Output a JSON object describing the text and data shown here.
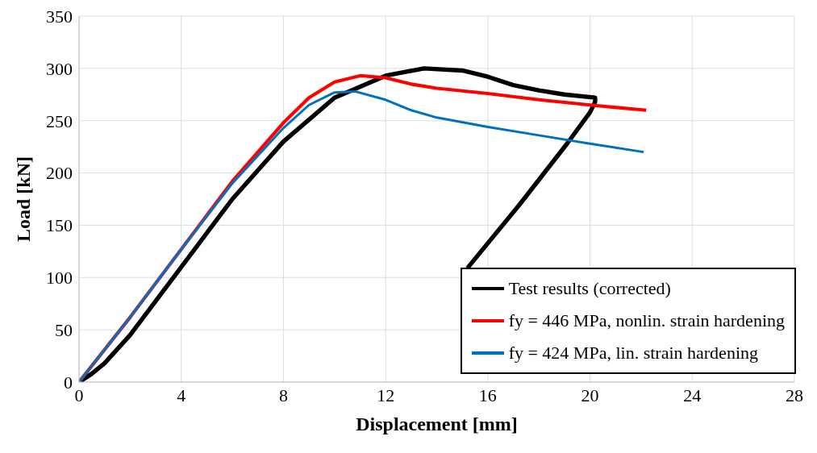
{
  "chart_data": {
    "type": "line",
    "xlabel": "Displacement [mm]",
    "ylabel": "Load [kN]",
    "xlim": [
      0,
      28
    ],
    "xticks": [
      0,
      4,
      8,
      12,
      16,
      20,
      24,
      28
    ],
    "ylim": [
      0,
      350
    ],
    "yticks": [
      0,
      50,
      100,
      150,
      200,
      250,
      300,
      350
    ],
    "grid": true,
    "legend": "bottom right",
    "marker": "none",
    "line_style": "solid",
    "series": [
      {
        "name": "Test results (corrected)",
        "color": "#000000",
        "x": [
          0,
          0.5,
          1,
          2,
          4,
          6,
          8,
          10,
          12,
          13.5,
          15,
          16,
          17,
          18,
          19,
          20.2,
          20.2,
          20,
          19.1,
          17.25,
          15.2
        ],
        "values": [
          0,
          8,
          18,
          45,
          110,
          175,
          230,
          272,
          293,
          300,
          298,
          292,
          284,
          279,
          275,
          272,
          268,
          258,
          228,
          170,
          109
        ]
      },
      {
        "name": "fy = 446 MPa, nonlin. strain hardening",
        "color": "#ff0000",
        "x": [
          0,
          2,
          4,
          6,
          8,
          9,
          10,
          11,
          12,
          13,
          14,
          16,
          18,
          20,
          22.2
        ],
        "values": [
          0,
          62,
          127,
          192,
          248,
          272,
          287,
          293,
          291,
          285,
          281,
          276,
          270,
          265,
          260
        ]
      },
      {
        "name": "fy = 424 MPa, lin. strain hardening",
        "color": "#0070c0",
        "x": [
          0,
          2,
          4,
          6,
          8,
          9,
          10,
          10.8,
          12,
          13,
          14,
          16,
          18,
          20,
          22.1
        ],
        "values": [
          0,
          62,
          127,
          190,
          243,
          265,
          277,
          278,
          270,
          260,
          253,
          244,
          236,
          228,
          220
        ]
      }
    ]
  }
}
